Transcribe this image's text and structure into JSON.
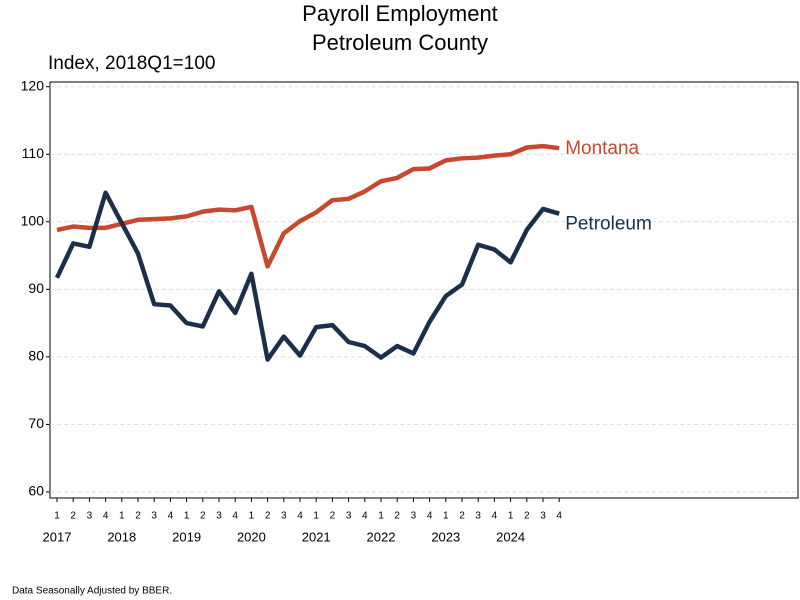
{
  "chart_data": {
    "type": "line",
    "title": "Payroll Employment",
    "subtitle": "Petroleum County",
    "y_label": "Index, 2018Q1=100",
    "note": "Data Seasonally Adjusted by BBER.",
    "categories": [
      "1",
      "2",
      "3",
      "4",
      "1",
      "2",
      "3",
      "4",
      "1",
      "2",
      "3",
      "4",
      "1",
      "2",
      "3",
      "4",
      "1",
      "2",
      "3",
      "4",
      "1",
      "2",
      "3",
      "4",
      "1",
      "2",
      "3",
      "4",
      "1",
      "2",
      "3",
      "4"
    ],
    "years": [
      "2017",
      "2018",
      "2019",
      "2020",
      "2021",
      "2022",
      "2023",
      "2024"
    ],
    "series": [
      {
        "name": "Montana",
        "color": "#c8472f",
        "values": [
          98.8,
          99.3,
          99.1,
          99.1,
          99.7,
          100.3,
          100.4,
          100.5,
          100.8,
          101.5,
          101.8,
          101.7,
          102.2,
          93.4,
          98.3,
          100.1,
          101.4,
          103.2,
          103.4,
          104.5,
          106.0,
          106.5,
          107.8,
          107.9,
          109.1,
          109.4,
          109.5,
          109.8,
          110.0,
          111.0,
          111.2,
          110.9
        ]
      },
      {
        "name": "Petroleum",
        "color": "#1b2f4b",
        "values": [
          91.7,
          96.8,
          96.3,
          104.3,
          99.8,
          95.3,
          87.8,
          87.6,
          85.0,
          84.5,
          89.7,
          86.5,
          92.3,
          79.6,
          83.0,
          80.2,
          84.4,
          84.7,
          82.2,
          81.6,
          79.9,
          81.6,
          80.5,
          85.2,
          89.0,
          90.7,
          96.6,
          95.9,
          94.0,
          98.8,
          101.9,
          101.2
        ]
      }
    ],
    "ylim": [
      59.1,
      120.7
    ],
    "yticks": [
      60,
      70,
      80,
      90,
      100,
      110,
      120
    ],
    "grid": true
  }
}
